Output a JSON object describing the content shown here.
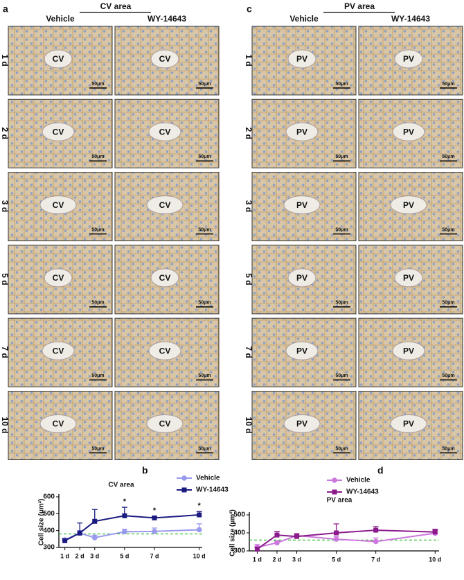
{
  "panels": [
    {
      "letter": "a",
      "title": "CV area",
      "columns": [
        "Vehicle",
        "WY-14643"
      ],
      "rows": [
        "1 d",
        "2 d",
        "3 d",
        "5 d",
        "7 d",
        "10 d"
      ],
      "cells": [
        [
          "CV",
          "CV"
        ],
        [
          "CV",
          "CV"
        ],
        [
          "CV",
          "CV"
        ],
        [
          "CV",
          "CV"
        ],
        [
          "CV",
          "CV"
        ],
        [
          "CV",
          "CV"
        ]
      ],
      "scale_bar": "50μm"
    },
    {
      "letter": "c",
      "title": "PV area",
      "columns": [
        "Vehicle",
        "WY-14643"
      ],
      "rows": [
        "1 d",
        "2 d",
        "3 d",
        "5 d",
        "7 d",
        "10 d"
      ],
      "cells": [
        [
          "PV",
          "PV"
        ],
        [
          "PV",
          "PV"
        ],
        [
          "PV",
          "PV"
        ],
        [
          "PV",
          "PV"
        ],
        [
          "PV",
          "PV"
        ],
        [
          "PV",
          "PV"
        ]
      ],
      "scale_bar": "50μm"
    }
  ],
  "chart_data": [
    {
      "type": "line",
      "letter": "b",
      "title": "CV area",
      "ylabel": "Cell size (μm²)",
      "x": [
        1,
        2,
        3,
        5,
        7,
        10
      ],
      "xticks": [
        {
          "value": 1,
          "label": "1 d"
        },
        {
          "value": 2,
          "label": "2 d"
        },
        {
          "value": 3,
          "label": "3 d"
        },
        {
          "value": 5,
          "label": "5 d"
        },
        {
          "value": 7,
          "label": "7 d"
        },
        {
          "value": 10,
          "label": "10 d"
        }
      ],
      "xlim": [
        0.6,
        10.2
      ],
      "ylim": [
        300,
        600
      ],
      "yticks": [
        300,
        400,
        500,
        600
      ],
      "reference_line": {
        "value": 380,
        "color": "#33bb33"
      },
      "series": [
        {
          "name": "Vehicle",
          "color": "#9999ee",
          "marker": "circle",
          "values": [
            345,
            385,
            358,
            393,
            395,
            405
          ],
          "errors": [
            10,
            15,
            15,
            15,
            20,
            35
          ]
        },
        {
          "name": "WY-14643",
          "color": "#1a1a80",
          "marker": "square",
          "values": [
            340,
            385,
            455,
            488,
            475,
            493
          ],
          "errors": [
            10,
            60,
            70,
            50,
            10,
            20
          ]
        }
      ],
      "annotations": [
        {
          "x": 5,
          "text": "*"
        },
        {
          "x": 7,
          "text": "*"
        },
        {
          "x": 10,
          "text": "*"
        }
      ]
    },
    {
      "type": "line",
      "letter": "d",
      "title": "PV area",
      "ylabel": "Cell size (μm²)",
      "x": [
        1,
        2,
        3,
        5,
        7,
        10
      ],
      "xticks": [
        {
          "value": 1,
          "label": "1 d"
        },
        {
          "value": 2,
          "label": "2 d"
        },
        {
          "value": 3,
          "label": "3 d"
        },
        {
          "value": 5,
          "label": "5 d"
        },
        {
          "value": 7,
          "label": "7 d"
        },
        {
          "value": 10,
          "label": "10 d"
        }
      ],
      "xlim": [
        0.6,
        10.2
      ],
      "ylim": [
        300,
        500
      ],
      "yticks": [
        300,
        400,
        500
      ],
      "reference_line": {
        "value": 360,
        "color": "#33bb33"
      },
      "series": [
        {
          "name": "Vehicle",
          "color": "#cc77dd",
          "marker": "circle",
          "values": [
            320,
            345,
            385,
            365,
            352,
            398
          ],
          "errors": [
            15,
            10,
            10,
            15,
            20,
            15
          ]
        },
        {
          "name": "WY-14643",
          "color": "#8b1a8b",
          "marker": "square",
          "values": [
            310,
            388,
            380,
            400,
            415,
            405
          ],
          "errors": [
            10,
            20,
            15,
            50,
            20,
            15
          ]
        }
      ]
    }
  ]
}
